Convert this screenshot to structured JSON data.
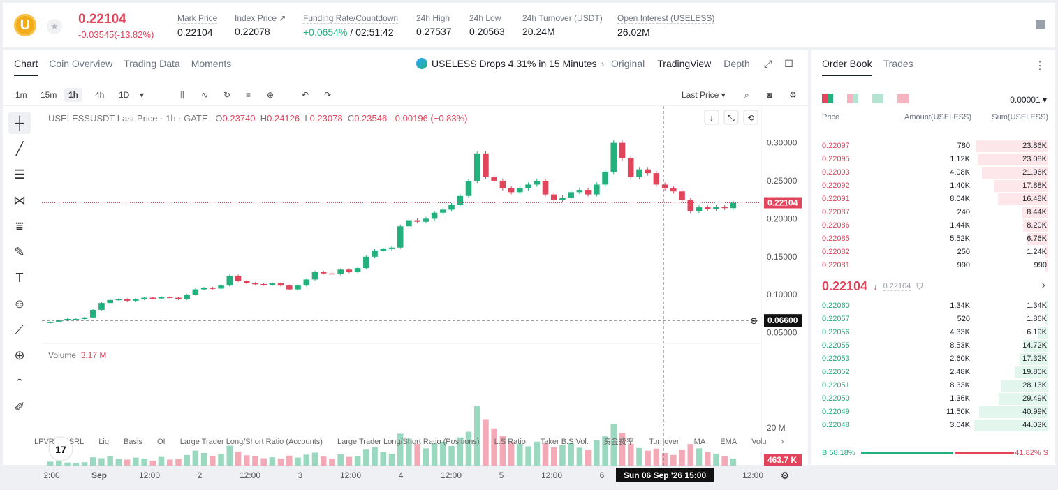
{
  "ticker": {
    "price": "0.22104",
    "change": "-0.03545(-13.82%)",
    "stats": [
      {
        "label": "Mark Price",
        "value": "0.22104"
      },
      {
        "label": "Index Price ↗",
        "value": "0.22078"
      },
      {
        "label": "Funding Rate/Countdown",
        "value_green": "+0.0654%",
        "value_rest": " / 02:51:42"
      },
      {
        "label": "24h High",
        "value": "0.27537"
      },
      {
        "label": "24h Low",
        "value": "0.20563"
      },
      {
        "label": "24h Turnover (USDT)",
        "value": "20.24M"
      },
      {
        "label": "Open Interest (USELESS)",
        "value": "26.02M"
      }
    ]
  },
  "chart_panel": {
    "tabs": [
      "Chart",
      "Coin Overview",
      "Trading Data",
      "Moments"
    ],
    "promo": "USELESS Drops 4.31% in 15 Minutes",
    "views": [
      "Original",
      "TradingView",
      "Depth"
    ],
    "timeframes": [
      "1m",
      "15m",
      "1h",
      "4h",
      "1D"
    ],
    "last_price_select": "Last Price",
    "ohlc": {
      "symbol": "USELESSUSDT Last Price · 1h · GATE",
      "o": "0.23740",
      "h": "0.24126",
      "l": "0.23078",
      "c": "0.23546",
      "chg": "-0.00196 (−0.83%)"
    },
    "volume_label": "Volume",
    "volume_value": "3.17 M",
    "indicators": [
      "LPVR",
      "SRL",
      "Liq",
      "Basis",
      "OI",
      "Large Trader Long/Short Ratio (Accounts)",
      "Large Trader Long/Short Ratio (Positions)",
      "L.S Ratio",
      "Taker B.S Vol.",
      "资金费率",
      "Turnover",
      "MA",
      "EMA",
      "Volu"
    ]
  },
  "chart_data": {
    "type": "candlestick",
    "y_ticks": [
      "0.30000",
      "0.25000",
      "0.20000",
      "0.15000",
      "0.10000",
      "0.05000"
    ],
    "ylim": [
      0.045,
      0.33
    ],
    "x_ticks": [
      "2:00",
      "Sep",
      "12:00",
      "2",
      "12:00",
      "3",
      "12:00",
      "4",
      "12:00",
      "5",
      "12:00",
      "6",
      "12:00"
    ],
    "current_price_label": "0.22104",
    "crosshair_price_label": "0.06600",
    "crosshair_time_label": "Sun 06 Sep '26   15:00",
    "volume_axis_label": "20 M",
    "volume_current_label": "463.7 K",
    "close_path": [
      0.064,
      0.066,
      0.068,
      0.068,
      0.07,
      0.08,
      0.089,
      0.093,
      0.094,
      0.092,
      0.094,
      0.096,
      0.095,
      0.097,
      0.096,
      0.094,
      0.1,
      0.107,
      0.109,
      0.108,
      0.112,
      0.125,
      0.118,
      0.115,
      0.114,
      0.113,
      0.115,
      0.112,
      0.107,
      0.112,
      0.12,
      0.13,
      0.128,
      0.127,
      0.133,
      0.13,
      0.135,
      0.15,
      0.158,
      0.16,
      0.162,
      0.19,
      0.198,
      0.196,
      0.2,
      0.208,
      0.212,
      0.218,
      0.23,
      0.25,
      0.286,
      0.255,
      0.25,
      0.24,
      0.235,
      0.24,
      0.245,
      0.25,
      0.232,
      0.225,
      0.228,
      0.235,
      0.238,
      0.232,
      0.245,
      0.262,
      0.3,
      0.28,
      0.255,
      0.265,
      0.26,
      0.245,
      0.24,
      0.236,
      0.225,
      0.21,
      0.215,
      0.213,
      0.216,
      0.214,
      0.221
    ],
    "volume_path": [
      1.2,
      1.4,
      0.9,
      0.8,
      1.0,
      2.5,
      2.2,
      2.8,
      2.0,
      1.8,
      2.4,
      2.1,
      1.5,
      2.6,
      1.8,
      2.0,
      3.2,
      4.5,
      3.8,
      2.9,
      3.5,
      6.0,
      4.2,
      3.1,
      2.8,
      2.2,
      2.5,
      2.1,
      3.0,
      2.4,
      3.3,
      3.9,
      2.7,
      2.1,
      3.4,
      2.6,
      2.8,
      5.0,
      5.6,
      4.0,
      3.6,
      9.6,
      8.1,
      6.5,
      5.2,
      6.8,
      7.2,
      5.9,
      8.5,
      10.2,
      18.0,
      14.0,
      11.2,
      9.0,
      7.1,
      6.5,
      5.8,
      7.2,
      6.8,
      5.5,
      6.2,
      6.9,
      5.4,
      4.8,
      7.6,
      8.8,
      12.5,
      9.8,
      6.6,
      5.3,
      4.5,
      5.1,
      3.8,
      3.2,
      4.8,
      6.5,
      5.2,
      4.1,
      3.6,
      2.8,
      2.1
    ]
  },
  "order_book": {
    "tabs": [
      "Order Book",
      "Trades"
    ],
    "precision": "0.00001",
    "columns": [
      "Price",
      "Amount(USELESS)",
      "Sum(USELESS)"
    ],
    "asks": [
      {
        "price": "0.22097",
        "amount": "780",
        "sum": "23.86K",
        "depth": 0.98
      },
      {
        "price": "0.22095",
        "amount": "1.12K",
        "sum": "23.08K",
        "depth": 0.95
      },
      {
        "price": "0.22093",
        "amount": "4.08K",
        "sum": "21.96K",
        "depth": 0.9
      },
      {
        "price": "0.22092",
        "amount": "1.40K",
        "sum": "17.88K",
        "depth": 0.74
      },
      {
        "price": "0.22091",
        "amount": "8.04K",
        "sum": "16.48K",
        "depth": 0.68
      },
      {
        "price": "0.22087",
        "amount": "240",
        "sum": "8.44K",
        "depth": 0.35
      },
      {
        "price": "0.22086",
        "amount": "1.44K",
        "sum": "8.20K",
        "depth": 0.34
      },
      {
        "price": "0.22085",
        "amount": "5.52K",
        "sum": "6.76K",
        "depth": 0.28
      },
      {
        "price": "0.22082",
        "amount": "250",
        "sum": "1.24K",
        "depth": 0.05
      },
      {
        "price": "0.22081",
        "amount": "990",
        "sum": "990",
        "depth": 0.04
      }
    ],
    "mid_price": "0.22104",
    "mark_price": "0.22104",
    "bids": [
      {
        "price": "0.22060",
        "amount": "1.34K",
        "sum": "1.34K",
        "depth": 0.03
      },
      {
        "price": "0.22057",
        "amount": "520",
        "sum": "1.86K",
        "depth": 0.04
      },
      {
        "price": "0.22056",
        "amount": "4.33K",
        "sum": "6.19K",
        "depth": 0.14
      },
      {
        "price": "0.22055",
        "amount": "8.53K",
        "sum": "14.72K",
        "depth": 0.33
      },
      {
        "price": "0.22053",
        "amount": "2.60K",
        "sum": "17.32K",
        "depth": 0.39
      },
      {
        "price": "0.22052",
        "amount": "2.48K",
        "sum": "19.80K",
        "depth": 0.45
      },
      {
        "price": "0.22051",
        "amount": "8.33K",
        "sum": "28.13K",
        "depth": 0.64
      },
      {
        "price": "0.22050",
        "amount": "1.36K",
        "sum": "29.49K",
        "depth": 0.67
      },
      {
        "price": "0.22049",
        "amount": "11.50K",
        "sum": "40.99K",
        "depth": 0.93
      },
      {
        "price": "0.22048",
        "amount": "3.04K",
        "sum": "44.03K",
        "depth": 1.0
      }
    ],
    "buy_ratio": "B 58.18%",
    "sell_ratio": "41.82% S"
  }
}
